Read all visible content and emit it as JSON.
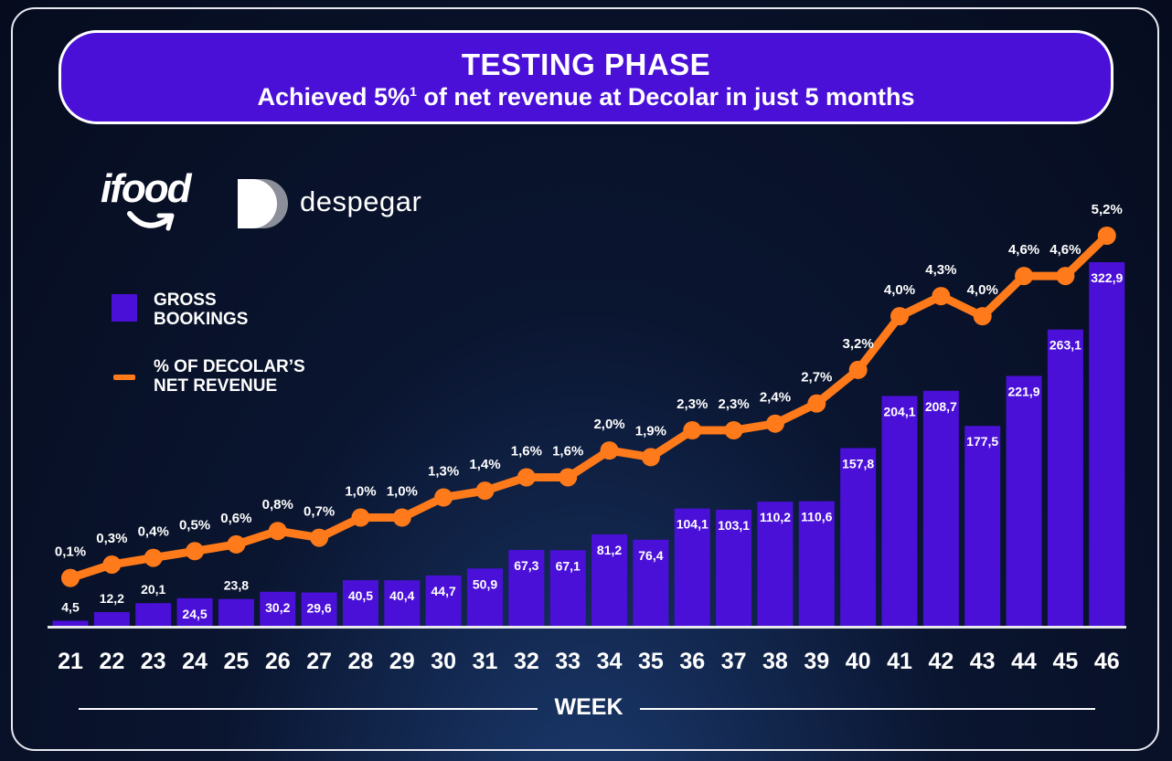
{
  "header": {
    "title": "TESTING PHASE",
    "subtitle_before": "Achieved 5%",
    "subtitle_sup": "1",
    "subtitle_after": " of net revenue at Decolar in just 5 months"
  },
  "logos": {
    "ifood": "ifood",
    "despegar": "despegar"
  },
  "legend": {
    "bars_label_1": "GROSS",
    "bars_label_2": "BOOKINGS",
    "line_label_1": "% OF DECOLAR’S",
    "line_label_2": "NET REVENUE"
  },
  "colors": {
    "bar": "#4a10d8",
    "line": "#ff7a1a",
    "text": "#ffffff"
  },
  "chart_data": {
    "type": "bar",
    "title": "TESTING PHASE",
    "xlabel": "WEEK",
    "ylabel": "",
    "categories": [
      "21",
      "22",
      "23",
      "24",
      "25",
      "26",
      "27",
      "28",
      "29",
      "30",
      "31",
      "32",
      "33",
      "34",
      "35",
      "36",
      "37",
      "38",
      "39",
      "40",
      "41",
      "42",
      "43",
      "44",
      "45",
      "46"
    ],
    "series": [
      {
        "name": "GROSS BOOKINGS",
        "type": "bar",
        "values": [
          4.5,
          12.2,
          20.1,
          24.5,
          23.8,
          30.2,
          29.6,
          40.5,
          40.4,
          44.7,
          50.9,
          67.3,
          67.1,
          81.2,
          76.4,
          104.1,
          103.1,
          110.2,
          110.6,
          157.8,
          204.1,
          208.7,
          177.5,
          221.9,
          263.1,
          322.9
        ],
        "labels": [
          "4,5",
          "12,2",
          "20,1",
          "24,5",
          "23,8",
          "30,2",
          "29,6",
          "40,5",
          "40,4",
          "44,7",
          "50,9",
          "67,3",
          "67,1",
          "81,2",
          "76,4",
          "104,1",
          "103,1",
          "110,2",
          "110,6",
          "157,8",
          "204,1",
          "208,7",
          "177,5",
          "221,9",
          "263,1",
          "322,9"
        ]
      },
      {
        "name": "% OF DECOLAR’S NET REVENUE",
        "type": "line",
        "values": [
          0.1,
          0.3,
          0.4,
          0.5,
          0.6,
          0.8,
          0.7,
          1.0,
          1.0,
          1.3,
          1.4,
          1.6,
          1.6,
          2.0,
          1.9,
          2.3,
          2.3,
          2.4,
          2.7,
          3.2,
          4.0,
          4.3,
          4.0,
          4.6,
          4.6,
          5.2
        ],
        "labels": [
          "0,1%",
          "0,3%",
          "0,4%",
          "0,5%",
          "0,6%",
          "0,8%",
          "0,7%",
          "1,0%",
          "1,0%",
          "1,3%",
          "1,4%",
          "1,6%",
          "1,6%",
          "2,0%",
          "1,9%",
          "2,3%",
          "2,3%",
          "2,4%",
          "2,7%",
          "3,2%",
          "4,0%",
          "4,3%",
          "4,0%",
          "4,6%",
          "4,6%",
          "5,2%"
        ]
      }
    ],
    "bar_ylim": [
      0,
      322.9
    ],
    "line_ylim": [
      0,
      5.2
    ],
    "grid": false
  }
}
